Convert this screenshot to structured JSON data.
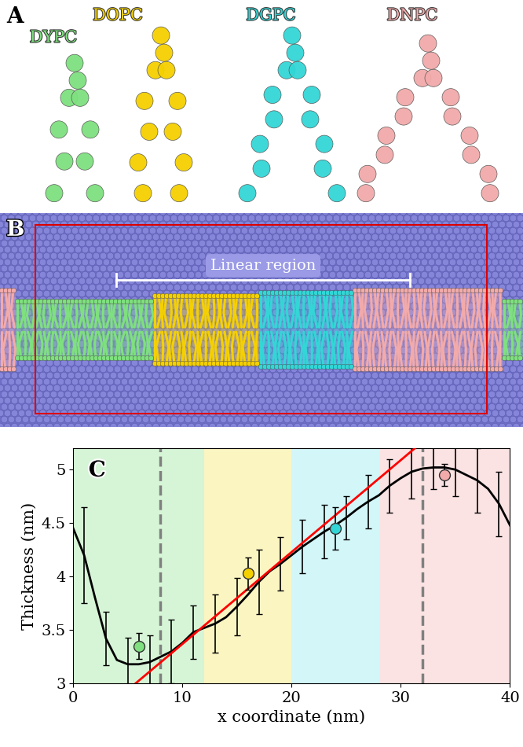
{
  "panel_labels": [
    "A",
    "B",
    "C"
  ],
  "lipids": [
    {
      "name": "DYPC",
      "color": "#7ee07e"
    },
    {
      "name": "DOPC",
      "color": "#f5d000"
    },
    {
      "name": "DGPC",
      "color": "#33d6d6"
    },
    {
      "name": "DNPC",
      "color": "#f2aaaa"
    }
  ],
  "snapshot": {
    "annotation": "Linear region"
  },
  "chart_data": {
    "type": "line",
    "x_label": "x coordinate (nm)",
    "y_label": "Thickness (nm)",
    "xlim": [
      0,
      40
    ],
    "ylim": [
      3,
      5.2
    ],
    "xticks": [
      0,
      10,
      20,
      30,
      40
    ],
    "yticks": [
      3,
      3.5,
      4,
      4.5,
      5
    ],
    "regions": [
      {
        "x": [
          0,
          12
        ],
        "color": "#d6f5d6"
      },
      {
        "x": [
          12,
          20
        ],
        "color": "#fbf5c2"
      },
      {
        "x": [
          20,
          28
        ],
        "color": "#d3f6f8"
      },
      {
        "x": [
          28,
          40
        ],
        "color": "#fbe3e3"
      }
    ],
    "dashed_lines": {
      "x": [
        8,
        32
      ],
      "color": "#808080",
      "line_style": "dashed"
    },
    "series": [
      {
        "type": "line",
        "color": "#000000",
        "x": [
          0,
          1,
          2,
          3,
          4,
          5,
          6,
          7,
          8,
          9,
          10,
          11,
          12,
          13,
          14,
          15,
          16,
          17,
          18,
          19,
          20,
          21,
          22,
          23,
          24,
          25,
          26,
          27,
          28,
          29,
          30,
          31,
          32,
          33,
          34,
          35,
          36,
          37,
          38,
          39,
          40
        ],
        "values": [
          4.45,
          4.2,
          3.8,
          3.42,
          3.22,
          3.18,
          3.18,
          3.2,
          3.25,
          3.3,
          3.38,
          3.48,
          3.52,
          3.56,
          3.62,
          3.72,
          3.83,
          3.95,
          4.05,
          4.12,
          4.2,
          4.28,
          4.35,
          4.42,
          4.48,
          4.55,
          4.63,
          4.7,
          4.76,
          4.85,
          4.92,
          4.98,
          5.01,
          5.02,
          5.02,
          5.0,
          4.95,
          4.9,
          4.82,
          4.68,
          4.48
        ],
        "errors": [
          null,
          0.45,
          null,
          0.25,
          null,
          0.25,
          null,
          0.25,
          null,
          0.3,
          null,
          0.25,
          null,
          0.27,
          null,
          0.27,
          null,
          0.3,
          null,
          0.25,
          null,
          0.25,
          null,
          0.25,
          null,
          0.2,
          null,
          0.25,
          null,
          0.25,
          null,
          0.25,
          null,
          0.2,
          null,
          0.25,
          null,
          0.3,
          null,
          0.3,
          null
        ]
      },
      {
        "type": "line",
        "color": "#ff0000",
        "x": [
          5.7,
          31.3
        ],
        "values": [
          3.0,
          5.2
        ]
      },
      {
        "type": "scatter",
        "marker": "o",
        "x": [
          6,
          16,
          24,
          34
        ],
        "values": [
          3.35,
          4.03,
          4.45,
          4.95
        ],
        "errors": [
          0.12,
          0.15,
          0.2,
          0.1
        ],
        "colors": [
          "#7ee07e",
          "#f5d000",
          "#33d6d6",
          "#f2aaaa"
        ]
      }
    ]
  }
}
